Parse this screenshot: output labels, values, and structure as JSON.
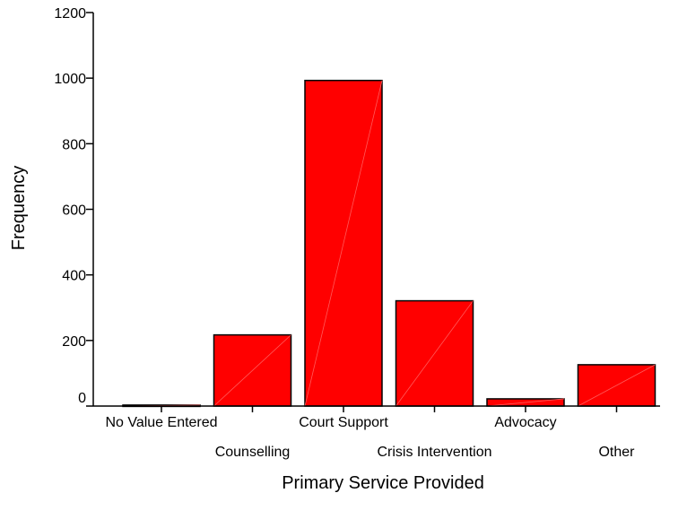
{
  "chart_data": {
    "type": "bar",
    "title": "",
    "xlabel": "Primary Service Provided",
    "ylabel": "Frequency",
    "categories": [
      "No Value Entered",
      "Counselling",
      "Court Support",
      "Crisis Intervention",
      "Advocacy",
      "Other"
    ],
    "values": [
      3,
      217,
      993,
      321,
      22,
      126
    ],
    "ylim": [
      0,
      1200
    ],
    "yticks": [
      0,
      200,
      400,
      600,
      800,
      1000,
      1200
    ],
    "grid": false,
    "bar_color": "#ff0000",
    "bar_edge_color": "#000000"
  }
}
